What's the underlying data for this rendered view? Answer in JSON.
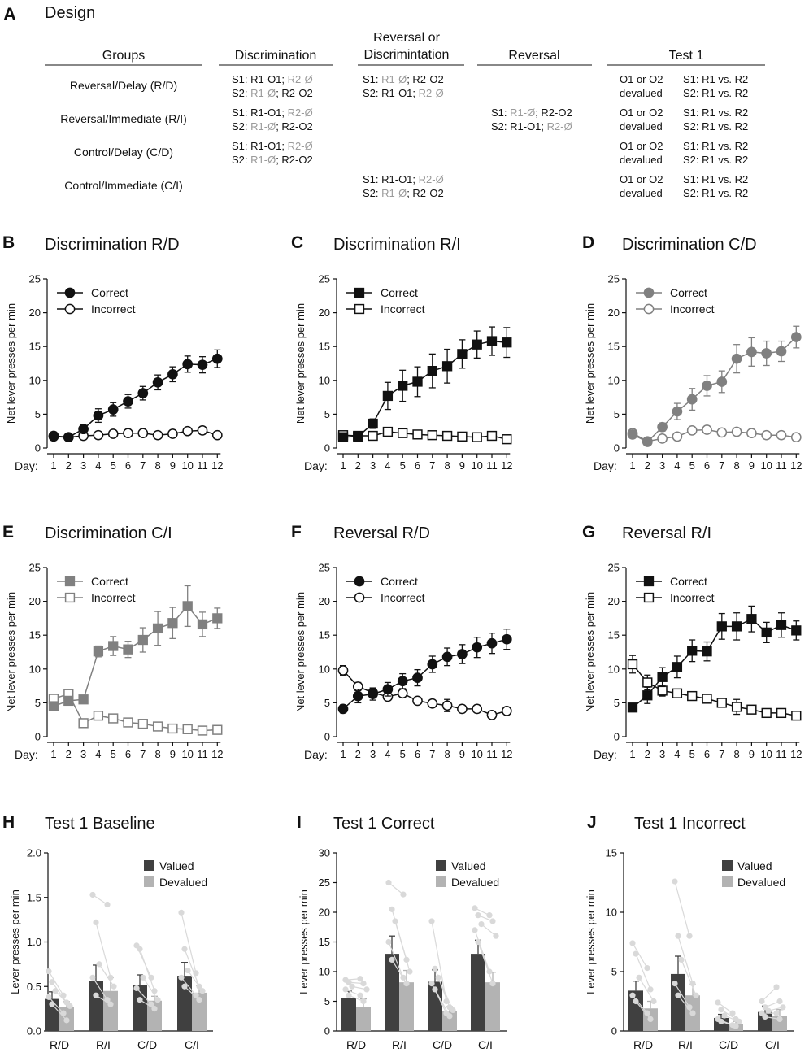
{
  "colors": {
    "black": "#111111",
    "dark_gray": "#808080",
    "light_gray": "#a6a6a6",
    "bar_valued": "#404040",
    "bar_devalued": "#b3b3b3",
    "dot": "#d9d9d9"
  },
  "design": {
    "label": "A",
    "title": "Design",
    "headers": [
      "Groups",
      "Discrimination",
      "Reversal or Discrimintation",
      "Reversal",
      "Test 1"
    ],
    "headers_split": {
      "rev_or_disc_line1": "Reversal or",
      "rev_or_disc_line2": "Discrimintation"
    },
    "groups": [
      {
        "name": "Reversal/Delay (R/D)",
        "discrimination": [
          [
            "S1: R1-O1; ",
            "R2-Ø"
          ],
          [
            "S2: ",
            "R1-Ø",
            "; R2-O2"
          ]
        ],
        "rev_or_disc": [
          [
            "S1: ",
            "R1-Ø",
            "; R2-O2"
          ],
          [
            "S2: R1-O1; ",
            "R2-Ø"
          ]
        ],
        "reversal": [],
        "test_outcome": [
          "O1 or O2",
          "devalued"
        ],
        "test_choice": [
          "S1: R1 vs. R2",
          "S2: R1 vs. R2"
        ]
      },
      {
        "name": "Reversal/Immediate (R/I)",
        "discrimination": [
          [
            "S1: R1-O1; ",
            "R2-Ø"
          ],
          [
            "S2: ",
            "R1-Ø",
            "; R2-O2"
          ]
        ],
        "rev_or_disc": [],
        "reversal": [
          [
            "S1: ",
            "R1-Ø",
            "; R2-O2"
          ],
          [
            "S2: R1-O1; ",
            "R2-Ø"
          ]
        ],
        "test_outcome": [
          "O1 or O2",
          "devalued"
        ],
        "test_choice": [
          "S1: R1 vs. R2",
          "S2: R1 vs. R2"
        ]
      },
      {
        "name": "Control/Delay (C/D)",
        "discrimination": [
          [
            "S1: R1-O1; ",
            "R2-Ø"
          ],
          [
            "S2: ",
            "R1-Ø",
            "; R2-O2"
          ]
        ],
        "rev_or_disc": [],
        "reversal": [],
        "test_outcome": [
          "O1 or O2",
          "devalued"
        ],
        "test_choice": [
          "S1: R1 vs. R2",
          "S2: R1 vs. R2"
        ]
      },
      {
        "name": "Control/Immediate (C/I)",
        "discrimination": [],
        "rev_or_disc": [
          [
            "S1: R1-O1; ",
            "R2-Ø"
          ],
          [
            "S2: ",
            "R1-Ø",
            "; R2-O2"
          ]
        ],
        "reversal": [],
        "test_outcome": [
          "O1 or O2",
          "devalued"
        ],
        "test_choice": [
          "S1: R1 vs. R2",
          "S2: R1 vs. R2"
        ]
      }
    ]
  },
  "chart_data": [
    {
      "panel": "B",
      "type": "line",
      "title": "Discrimination R/D",
      "ylabel": "Net lever presses per min",
      "xlabel": "Day:",
      "x": [
        1,
        2,
        3,
        4,
        5,
        6,
        7,
        8,
        9,
        10,
        11,
        12
      ],
      "ylim": [
        0,
        25
      ],
      "yticks": [
        0,
        5,
        10,
        15,
        20,
        25
      ],
      "marker": "circle",
      "color": "#111111",
      "legend": [
        "Correct",
        "Incorrect"
      ],
      "series": [
        {
          "name": "Correct",
          "values": [
            1.7,
            1.6,
            2.8,
            4.8,
            5.7,
            6.9,
            8.1,
            9.7,
            10.9,
            12.4,
            12.3,
            13.2
          ],
          "err": [
            0.3,
            0.3,
            0.6,
            1.0,
            1.0,
            1.0,
            1.0,
            1.1,
            1.1,
            1.2,
            1.2,
            1.3
          ]
        },
        {
          "name": "Incorrect",
          "values": [
            1.8,
            1.6,
            1.8,
            1.9,
            2.1,
            2.2,
            2.2,
            1.9,
            2.1,
            2.5,
            2.6,
            1.9
          ],
          "err": [
            0.2,
            0.2,
            0.2,
            0.2,
            0.3,
            0.3,
            0.3,
            0.3,
            0.3,
            0.3,
            0.3,
            0.3
          ]
        }
      ]
    },
    {
      "panel": "C",
      "type": "line",
      "title": "Discrimination R/I",
      "ylabel": "Net lever presses per min",
      "xlabel": "Day:",
      "x": [
        1,
        2,
        3,
        4,
        5,
        6,
        7,
        8,
        9,
        10,
        11,
        12
      ],
      "ylim": [
        0,
        25
      ],
      "yticks": [
        0,
        5,
        10,
        15,
        20,
        25
      ],
      "marker": "square",
      "color": "#111111",
      "legend": [
        "Correct",
        "Incorrect"
      ],
      "series": [
        {
          "name": "Correct",
          "values": [
            1.6,
            1.7,
            3.6,
            7.7,
            9.2,
            9.8,
            11.4,
            12.1,
            13.9,
            15.3,
            15.8,
            15.6
          ],
          "err": [
            0.3,
            0.3,
            0.7,
            2.0,
            2.3,
            2.2,
            2.5,
            2.5,
            2.1,
            2.0,
            2.1,
            2.2
          ]
        },
        {
          "name": "Incorrect",
          "values": [
            1.9,
            1.8,
            1.8,
            2.4,
            2.2,
            2.0,
            1.9,
            1.8,
            1.7,
            1.6,
            1.8,
            1.3
          ],
          "err": [
            0.4,
            0.4,
            0.3,
            0.3,
            0.3,
            0.3,
            0.3,
            0.3,
            0.3,
            0.3,
            0.3,
            0.3
          ]
        }
      ]
    },
    {
      "panel": "D",
      "type": "line",
      "title": "Discrimination C/D",
      "ylabel": "Net lever presses per min",
      "xlabel": "Day:",
      "x": [
        1,
        2,
        3,
        4,
        5,
        6,
        7,
        8,
        9,
        10,
        11,
        12
      ],
      "ylim": [
        0,
        25
      ],
      "yticks": [
        0,
        5,
        10,
        15,
        20,
        25
      ],
      "marker": "circle",
      "color": "#808080",
      "legend": [
        "Correct",
        "Incorrect"
      ],
      "series": [
        {
          "name": "Correct",
          "values": [
            2.0,
            0.9,
            3.1,
            5.4,
            7.2,
            9.2,
            9.8,
            13.2,
            14.2,
            14.0,
            14.3,
            16.4
          ],
          "err": [
            0.3,
            0.2,
            0.6,
            1.2,
            1.6,
            1.5,
            1.6,
            2.1,
            2.1,
            1.8,
            1.5,
            1.6
          ]
        },
        {
          "name": "Incorrect",
          "values": [
            2.2,
            1.0,
            1.4,
            1.7,
            2.6,
            2.7,
            2.3,
            2.4,
            2.2,
            1.9,
            1.9,
            1.6
          ],
          "err": [
            0.3,
            0.2,
            0.2,
            0.3,
            0.3,
            0.3,
            0.3,
            0.3,
            0.3,
            0.3,
            0.3,
            0.3
          ]
        }
      ]
    },
    {
      "panel": "E",
      "type": "line",
      "title": "Discrimination C/I",
      "ylabel": "Net lever presses per min",
      "xlabel": "Day:",
      "x": [
        1,
        2,
        3,
        4,
        5,
        6,
        7,
        8,
        9,
        10,
        11,
        12
      ],
      "ylim": [
        0,
        25
      ],
      "yticks": [
        0,
        5,
        10,
        15,
        20,
        25
      ],
      "marker": "square",
      "color": "#808080",
      "legend": [
        "Correct",
        "Incorrect"
      ],
      "series": [
        {
          "name": "Correct",
          "values": [
            4.5,
            5.3,
            5.5,
            12.6,
            13.4,
            12.9,
            14.3,
            16.0,
            16.8,
            19.3,
            16.6,
            17.5
          ],
          "err": [
            0.5,
            0.6,
            0.6,
            0.8,
            1.4,
            1.2,
            1.8,
            2.5,
            2.3,
            3.0,
            1.8,
            1.5
          ]
        },
        {
          "name": "Incorrect",
          "values": [
            5.6,
            6.3,
            2.0,
            3.1,
            2.7,
            2.1,
            1.9,
            1.5,
            1.2,
            1.1,
            0.9,
            1.0
          ],
          "err": [
            0.4,
            0.4,
            0.3,
            0.3,
            0.3,
            0.3,
            0.3,
            0.3,
            0.3,
            0.3,
            0.3,
            0.3
          ]
        }
      ]
    },
    {
      "panel": "F",
      "type": "line",
      "title": "Reversal R/D",
      "ylabel": "Net lever presses per min",
      "xlabel": "Day:",
      "x": [
        1,
        2,
        3,
        4,
        5,
        6,
        7,
        8,
        9,
        10,
        11,
        12
      ],
      "ylim": [
        0,
        25
      ],
      "yticks": [
        0,
        5,
        10,
        15,
        20,
        25
      ],
      "marker": "circle",
      "color": "#111111",
      "legend": [
        "Correct",
        "Incorrect"
      ],
      "series": [
        {
          "name": "Correct",
          "values": [
            4.1,
            6.0,
            6.3,
            7.0,
            8.2,
            8.7,
            10.7,
            11.8,
            12.2,
            13.2,
            13.8,
            14.4
          ],
          "err": [
            0.6,
            1.0,
            0.9,
            1.0,
            1.1,
            1.2,
            1.2,
            1.3,
            1.4,
            1.5,
            1.5,
            1.5
          ]
        },
        {
          "name": "Incorrect",
          "values": [
            9.8,
            7.4,
            6.5,
            5.9,
            6.4,
            5.3,
            4.9,
            4.6,
            4.1,
            4.1,
            3.2,
            3.8
          ],
          "err": [
            0.7,
            0.6,
            0.6,
            0.5,
            0.5,
            0.5,
            0.5,
            0.9,
            0.4,
            0.4,
            0.4,
            0.4
          ]
        }
      ]
    },
    {
      "panel": "G",
      "type": "line",
      "title": "Reversal R/I",
      "ylabel": "Net lever presses per min",
      "xlabel": "Day:",
      "x": [
        1,
        2,
        3,
        4,
        5,
        6,
        7,
        8,
        9,
        10,
        11,
        12
      ],
      "ylim": [
        0,
        25
      ],
      "yticks": [
        0,
        5,
        10,
        15,
        20,
        25
      ],
      "marker": "square",
      "color": "#111111",
      "legend": [
        "Correct",
        "Incorrect"
      ],
      "series": [
        {
          "name": "Correct",
          "values": [
            4.3,
            6.1,
            8.8,
            10.3,
            12.7,
            12.6,
            16.3,
            16.3,
            17.4,
            15.4,
            16.5,
            15.7
          ],
          "err": [
            0.6,
            1.2,
            1.4,
            1.6,
            1.6,
            1.4,
            1.9,
            2.0,
            1.9,
            1.5,
            1.8,
            1.4
          ]
        },
        {
          "name": "Incorrect",
          "values": [
            10.7,
            8.0,
            6.8,
            6.4,
            6.0,
            5.6,
            5.0,
            4.4,
            4.0,
            3.5,
            3.5,
            3.1
          ],
          "err": [
            1.3,
            1.1,
            0.8,
            0.6,
            0.5,
            0.6,
            0.5,
            1.1,
            0.6,
            0.5,
            0.4,
            0.4
          ]
        }
      ]
    },
    {
      "panel": "H",
      "type": "bar",
      "title": "Test 1 Baseline",
      "ylabel": "Lever presses per min",
      "categories": [
        "R/D",
        "R/I",
        "C/D",
        "C/I"
      ],
      "ylim": [
        0,
        2.0
      ],
      "yticks": [
        "0.0",
        "0.5",
        "1.0",
        "1.5",
        "2.0"
      ],
      "ytick_values": [
        0,
        0.5,
        1.0,
        1.5,
        2.0
      ],
      "legend": [
        "Valued",
        "Devalued"
      ],
      "series": [
        {
          "name": "Valued",
          "values": [
            0.36,
            0.56,
            0.52,
            0.62
          ],
          "err": [
            0.08,
            0.18,
            0.11,
            0.15
          ]
        },
        {
          "name": "Devalued",
          "values": [
            0.27,
            0.45,
            0.34,
            0.43
          ],
          "err": [
            0.06,
            0.15,
            0.05,
            0.08
          ]
        }
      ],
      "subjects": [
        {
          "valued": [
            0.67,
            0.55,
            0.45,
            0.38,
            0.3
          ],
          "devalued": [
            0.4,
            0.32,
            0.28,
            0.2,
            0.12
          ]
        },
        {
          "valued": [
            1.53,
            1.22,
            0.75,
            0.6,
            0.4
          ],
          "devalued": [
            1.42,
            0.6,
            0.5,
            0.35,
            0.3
          ]
        },
        {
          "valued": [
            0.96,
            0.92,
            0.6,
            0.48,
            0.35
          ],
          "devalued": [
            0.6,
            0.45,
            0.35,
            0.3,
            0.25
          ]
        },
        {
          "valued": [
            1.33,
            0.92,
            0.68,
            0.6,
            0.5
          ],
          "devalued": [
            0.65,
            0.5,
            0.45,
            0.4,
            0.35
          ]
        }
      ]
    },
    {
      "panel": "I",
      "type": "bar",
      "title": "Test 1 Correct",
      "ylabel": "Lever presses per min",
      "categories": [
        "R/D",
        "R/I",
        "C/D",
        "C/I"
      ],
      "ylim": [
        0,
        30
      ],
      "yticks": [
        "0",
        "5",
        "10",
        "15",
        "20",
        "25",
        "30"
      ],
      "ytick_values": [
        0,
        5,
        10,
        15,
        20,
        25,
        30
      ],
      "legend": [
        "Valued",
        "Devalued"
      ],
      "series": [
        {
          "name": "Valued",
          "values": [
            5.5,
            13.0,
            8.3,
            13.0
          ],
          "err": [
            1.2,
            3.0,
            2.0,
            2.3
          ]
        },
        {
          "name": "Devalued",
          "values": [
            4.1,
            8.2,
            3.4,
            8.2
          ],
          "err": [
            1.3,
            2.0,
            0.7,
            1.7
          ]
        }
      ],
      "subjects": [
        {
          "valued": [
            8.6,
            8.2,
            7.5,
            7.0,
            6.0
          ],
          "devalued": [
            8.8,
            8.0,
            7.0,
            6.0,
            5.0
          ]
        },
        {
          "valued": [
            25.0,
            20.5,
            18.5,
            15.0,
            12.0
          ],
          "devalued": [
            23.0,
            12.0,
            10.0,
            9.0,
            8.0
          ]
        },
        {
          "valued": [
            18.5,
            10.5,
            9.0,
            8.0,
            7.0
          ],
          "devalued": [
            5.0,
            4.0,
            3.5,
            3.0,
            2.5
          ]
        },
        {
          "valued": [
            20.7,
            19.5,
            18.0,
            17.0,
            15.0
          ],
          "devalued": [
            19.5,
            18.5,
            16.0,
            10.0,
            8.0
          ]
        }
      ]
    },
    {
      "panel": "J",
      "type": "bar",
      "title": "Test 1 Incorrect",
      "ylabel": "Lever presses per min",
      "categories": [
        "R/D",
        "R/I",
        "C/D",
        "C/I"
      ],
      "ylim": [
        0,
        15
      ],
      "yticks": [
        "0",
        "5",
        "10",
        "15"
      ],
      "ytick_values": [
        0,
        5,
        10,
        15
      ],
      "legend": [
        "Valued",
        "Devalued"
      ],
      "series": [
        {
          "name": "Valued",
          "values": [
            3.4,
            4.8,
            1.1,
            1.6
          ],
          "err": [
            0.8,
            1.5,
            0.3,
            0.5
          ]
        },
        {
          "name": "Devalued",
          "values": [
            1.9,
            3.0,
            0.6,
            1.3
          ],
          "err": [
            0.6,
            0.9,
            0.2,
            0.5
          ]
        }
      ],
      "subjects": [
        {
          "valued": [
            7.4,
            6.5,
            4.5,
            3.0,
            2.5
          ],
          "devalued": [
            5.3,
            3.5,
            2.5,
            1.5,
            1.0
          ]
        },
        {
          "valued": [
            12.6,
            8.0,
            6.0,
            4.0,
            3.0
          ],
          "devalued": [
            8.0,
            4.0,
            3.0,
            2.0,
            1.5
          ]
        },
        {
          "valued": [
            2.4,
            1.8,
            1.3,
            1.0,
            0.8
          ],
          "devalued": [
            1.5,
            1.0,
            0.8,
            0.5,
            0.4
          ]
        },
        {
          "valued": [
            2.5,
            2.0,
            1.7,
            1.5,
            1.2
          ],
          "devalued": [
            3.7,
            2.5,
            2.0,
            1.5,
            1.0
          ]
        }
      ]
    }
  ]
}
